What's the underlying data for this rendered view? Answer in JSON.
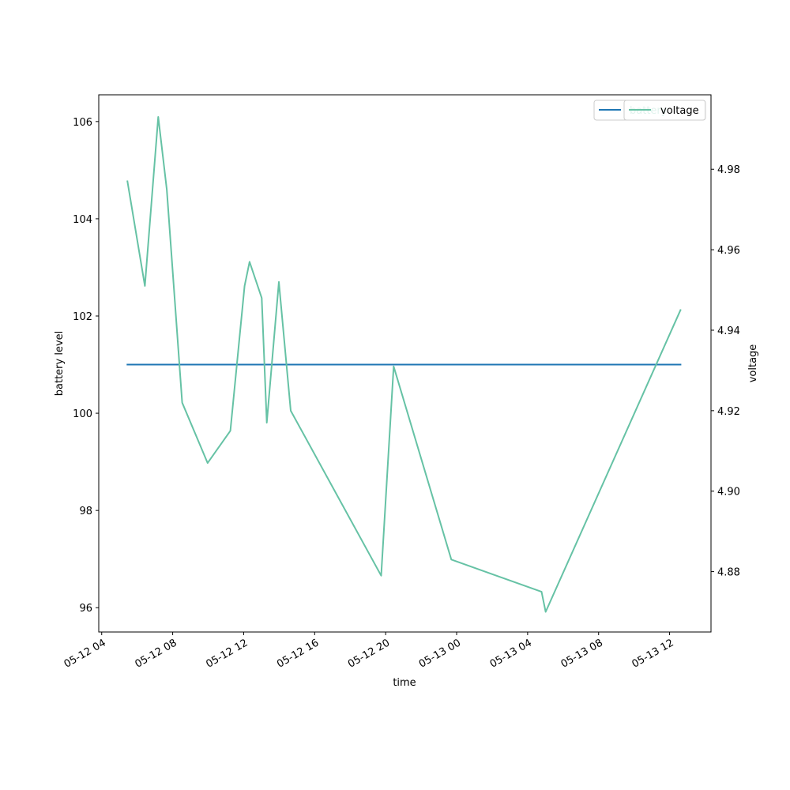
{
  "chart_data": {
    "type": "line",
    "xlabel": "time",
    "ylabel": "battery level",
    "y2label": "voltage",
    "legend_placement": "top-right",
    "grid": false,
    "xlim": [
      "2024-05-12T03:50",
      "2024-05-13T14:20"
    ],
    "ylim": [
      95.5,
      106.55
    ],
    "y2lim": [
      4.865,
      4.9985
    ],
    "x_ticks": [
      {
        "t": "2024-05-12T04:00",
        "label": "05-12 04"
      },
      {
        "t": "2024-05-12T08:00",
        "label": "05-12 08"
      },
      {
        "t": "2024-05-12T12:00",
        "label": "05-12 12"
      },
      {
        "t": "2024-05-12T16:00",
        "label": "05-12 16"
      },
      {
        "t": "2024-05-12T20:00",
        "label": "05-12 20"
      },
      {
        "t": "2024-05-13T00:00",
        "label": "05-13 00"
      },
      {
        "t": "2024-05-13T04:00",
        "label": "05-13 04"
      },
      {
        "t": "2024-05-13T08:00",
        "label": "05-13 08"
      },
      {
        "t": "2024-05-13T12:00",
        "label": "05-13 12"
      }
    ],
    "y_ticks": [
      {
        "v": 96,
        "label": "96"
      },
      {
        "v": 98,
        "label": "98"
      },
      {
        "v": 100,
        "label": "100"
      },
      {
        "v": 102,
        "label": "102"
      },
      {
        "v": 104,
        "label": "104"
      },
      {
        "v": 106,
        "label": "106"
      }
    ],
    "y2_ticks": [
      {
        "v": 4.88,
        "label": "4.88"
      },
      {
        "v": 4.9,
        "label": "4.90"
      },
      {
        "v": 4.92,
        "label": "4.92"
      },
      {
        "v": 4.94,
        "label": "4.94"
      },
      {
        "v": 4.96,
        "label": "4.96"
      },
      {
        "v": 4.98,
        "label": "4.98"
      }
    ],
    "series": [
      {
        "name": "battery",
        "axis": "left",
        "color": "#1f77b4",
        "points": [
          {
            "t": "2024-05-12T05:27",
            "v": 101
          },
          {
            "t": "2024-05-13T12:37",
            "v": 101
          }
        ]
      },
      {
        "name": "voltage",
        "axis": "right",
        "color": "#66c2a5",
        "points": [
          {
            "t": "2024-05-12T05:27",
            "v": 4.977
          },
          {
            "t": "2024-05-12T06:26",
            "v": 4.951
          },
          {
            "t": "2024-05-12T07:11",
            "v": 4.993
          },
          {
            "t": "2024-05-12T07:40",
            "v": 4.975
          },
          {
            "t": "2024-05-12T08:32",
            "v": 4.922
          },
          {
            "t": "2024-05-12T09:58",
            "v": 4.907
          },
          {
            "t": "2024-05-12T11:15",
            "v": 4.915
          },
          {
            "t": "2024-05-12T12:03",
            "v": 4.951
          },
          {
            "t": "2024-05-12T12:20",
            "v": 4.957
          },
          {
            "t": "2024-05-12T13:01",
            "v": 4.948
          },
          {
            "t": "2024-05-12T13:18",
            "v": 4.917
          },
          {
            "t": "2024-05-12T13:59",
            "v": 4.952
          },
          {
            "t": "2024-05-12T14:39",
            "v": 4.92
          },
          {
            "t": "2024-05-12T19:45",
            "v": 4.879
          },
          {
            "t": "2024-05-12T20:27",
            "v": 4.931
          },
          {
            "t": "2024-05-12T23:42",
            "v": 4.883
          },
          {
            "t": "2024-05-13T04:47",
            "v": 4.875
          },
          {
            "t": "2024-05-13T05:01",
            "v": 4.87
          },
          {
            "t": "2024-05-13T12:37",
            "v": 4.945
          }
        ]
      }
    ]
  }
}
